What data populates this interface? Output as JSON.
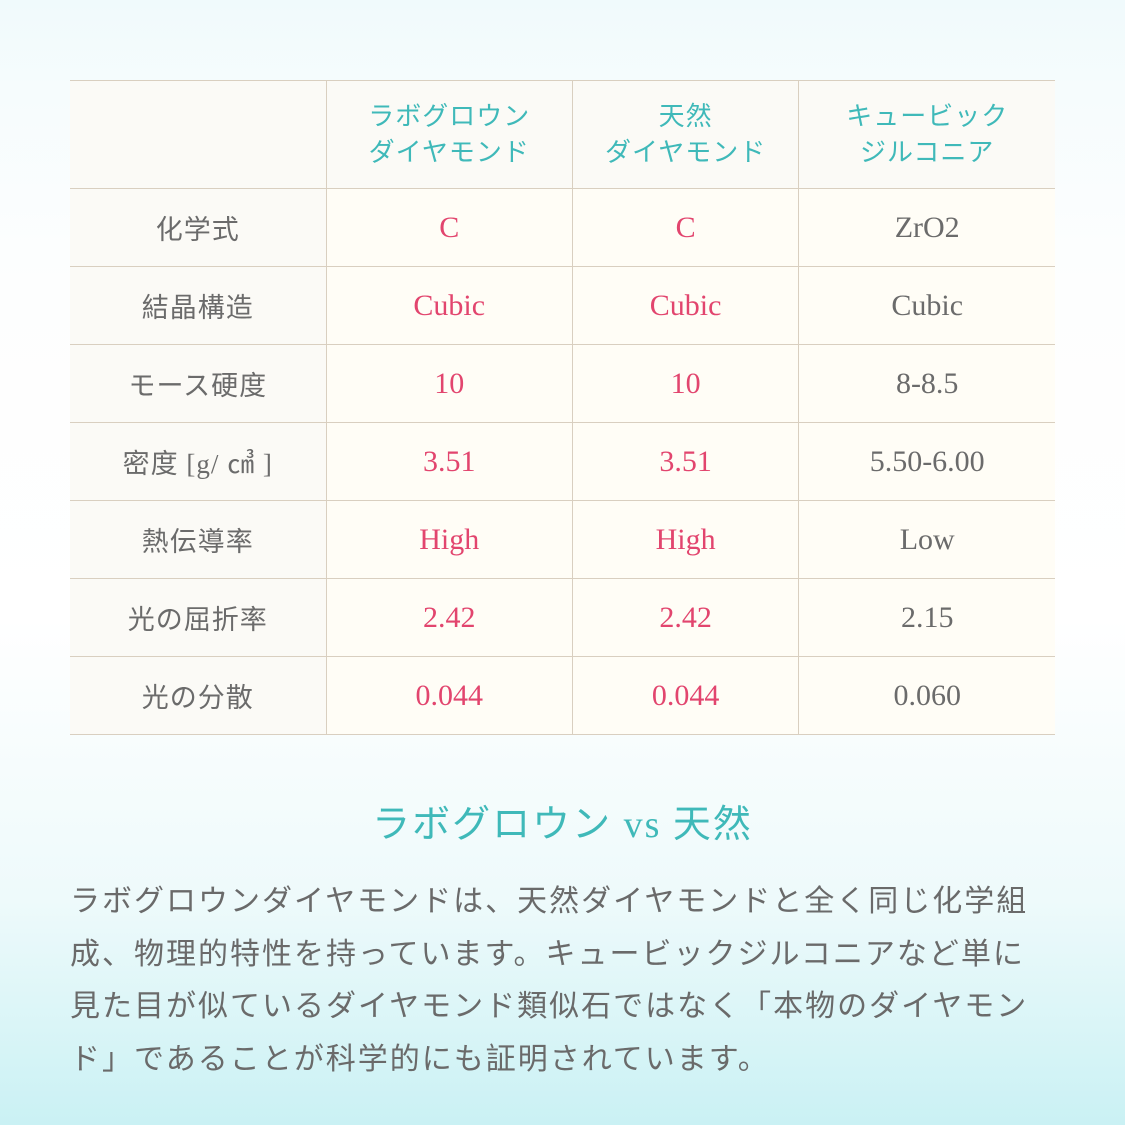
{
  "colors": {
    "background_gradient": [
      "#f0fafc",
      "#f6fcfd",
      "#fdfefe",
      "#ffffff",
      "#eefafb",
      "#caf1f4"
    ],
    "border": "#d9cfc0",
    "header_bg": "#fbfaf6",
    "cell_bg": "#fffdf6",
    "teal": "#3fb9b9",
    "highlight": "#e2456e",
    "text": "#6b6b6b"
  },
  "table": {
    "type": "table",
    "header_fontsize": 26,
    "rowlabel_fontsize": 27,
    "cell_fontsize": 30,
    "column_widths_pct": [
      26,
      25,
      23,
      26
    ],
    "columns": [
      {
        "line1": "",
        "line2": ""
      },
      {
        "line1": "ラボグロウン",
        "line2": "ダイヤモンド"
      },
      {
        "line1": "天然",
        "line2": "ダイヤモンド"
      },
      {
        "line1": "キュービック",
        "line2": "ジルコニア"
      }
    ],
    "rows": [
      {
        "label": "化学式",
        "c1": "C",
        "c2": "C",
        "c3": "ZrO2"
      },
      {
        "label": "結晶構造",
        "c1": "Cubic",
        "c2": "Cubic",
        "c3": "Cubic"
      },
      {
        "label": "モース硬度",
        "c1": "10",
        "c2": "10",
        "c3": "8-8.5"
      },
      {
        "label": "密度 [g/ ㎤ ]",
        "c1": "3.51",
        "c2": "3.51",
        "c3": "5.50-6.00"
      },
      {
        "label": "熱伝導率",
        "c1": "High",
        "c2": "High",
        "c3": "Low"
      },
      {
        "label": "光の屈折率",
        "c1": "2.42",
        "c2": "2.42",
        "c3": "2.15"
      },
      {
        "label": "光の分散",
        "c1": "0.044",
        "c2": "0.044",
        "c3": "0.060"
      }
    ]
  },
  "heading": "ラボグロウン vs 天然",
  "heading_fontsize": 38,
  "body_fontsize": 30,
  "body": "ラボグロウンダイヤモンドは、天然ダイヤモンドと全く同じ化学組成、物理的特性を持っています。キュービックジルコニアなど単に見た目が似ているダイヤモンド類似石ではなく「本物のダイヤモンド」であることが科学的にも証明されています。"
}
